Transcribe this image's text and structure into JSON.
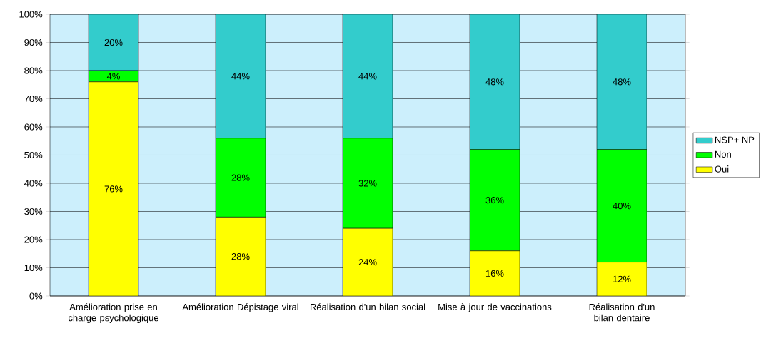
{
  "chart_data": {
    "type": "bar",
    "stacked": true,
    "categories": [
      "Amélioration prise en charge psychologique",
      "Amélioration Dépistage viral",
      "Réalisation d'un bilan social",
      "Mise à jour de vaccinations",
      "Réalisation d'un bilan dentaire"
    ],
    "series": [
      {
        "name": "Oui",
        "color": "#ffff00",
        "values": [
          76,
          28,
          24,
          16,
          12
        ],
        "value_labels": [
          "76%",
          "28%",
          "24%",
          "16%",
          "12%"
        ]
      },
      {
        "name": "Non",
        "color": "#00ff00",
        "values": [
          4,
          28,
          32,
          36,
          40
        ],
        "value_labels": [
          "4%",
          "28%",
          "32%",
          "36%",
          "40%"
        ]
      },
      {
        "name": "NSP+ NP",
        "color": "#33cccc",
        "values": [
          20,
          44,
          44,
          48,
          48
        ],
        "value_labels": [
          "20%",
          "44%",
          "44%",
          "48%",
          "48%"
        ]
      }
    ],
    "ylim": [
      0,
      100
    ],
    "yticks": [
      {
        "value": 0,
        "label": "0%"
      },
      {
        "value": 10,
        "label": "10%"
      },
      {
        "value": 20,
        "label": "20%"
      },
      {
        "value": 30,
        "label": "30%"
      },
      {
        "value": 40,
        "label": "40%"
      },
      {
        "value": 50,
        "label": "50%"
      },
      {
        "value": 60,
        "label": "60%"
      },
      {
        "value": 70,
        "label": "70%"
      },
      {
        "value": 80,
        "label": "80%"
      },
      {
        "value": 90,
        "label": "90%"
      },
      {
        "value": 100,
        "label": "100%"
      }
    ],
    "grid": "y",
    "legend": "right"
  }
}
